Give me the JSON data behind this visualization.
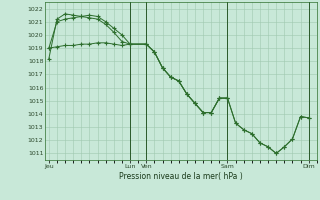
{
  "xlabel": "Pression niveau de la mer( hPa )",
  "background_color": "#c8e8d8",
  "grid_color": "#a0c8b0",
  "line_color": "#2d6e2d",
  "dark_vline_color": "#336633",
  "ylim": [
    1010.5,
    1022.5
  ],
  "yticks": [
    1011,
    1012,
    1013,
    1014,
    1015,
    1016,
    1017,
    1018,
    1019,
    1020,
    1021,
    1022
  ],
  "day_labels": [
    "Jeu",
    "Lun",
    "Ven",
    "Sam",
    "Dim"
  ],
  "day_positions": [
    0,
    10,
    12,
    22,
    32
  ],
  "dark_vline_positions": [
    10,
    12,
    22,
    32
  ],
  "xlim": [
    -0.5,
    33
  ],
  "series1_x": [
    0,
    1,
    2,
    3,
    4,
    5,
    6,
    7,
    8,
    9,
    10,
    12,
    13,
    14,
    15,
    16,
    17,
    18,
    19,
    20,
    21,
    22,
    23,
    24,
    25,
    26,
    27,
    28,
    29,
    30,
    31,
    32
  ],
  "series1_y": [
    1018.2,
    1021.2,
    1021.6,
    1021.5,
    1021.4,
    1021.3,
    1021.2,
    1020.8,
    1020.2,
    1019.5,
    1019.3,
    1019.3,
    1018.7,
    1017.5,
    1016.8,
    1016.5,
    1015.5,
    1014.8,
    1014.1,
    1014.1,
    1015.2,
    1015.2,
    1013.3,
    1012.8,
    1012.5,
    1011.8,
    1011.5,
    1011.0,
    1011.5,
    1012.1,
    1013.8,
    1013.7
  ],
  "series2_x": [
    0,
    1,
    2,
    3,
    4,
    5,
    6,
    7,
    8,
    9,
    10,
    12,
    13,
    14,
    15,
    16,
    17,
    18,
    19,
    20,
    21,
    22,
    23,
    24,
    25,
    26,
    27,
    28,
    29,
    30,
    31,
    32
  ],
  "series2_y": [
    1019.0,
    1019.1,
    1019.2,
    1019.2,
    1019.3,
    1019.3,
    1019.4,
    1019.4,
    1019.3,
    1019.2,
    1019.3,
    1019.3,
    1018.7,
    1017.5,
    1016.8,
    1016.5,
    1015.5,
    1014.8,
    1014.1,
    1014.1,
    1015.2,
    1015.2,
    1013.3,
    1012.8,
    1012.5,
    1011.8,
    1011.5,
    1011.0,
    1011.5,
    1012.1,
    1013.8,
    1013.7
  ],
  "series3_x": [
    0,
    1,
    2,
    3,
    4,
    5,
    6,
    7,
    8,
    9,
    10,
    12,
    13,
    14,
    15,
    16,
    17,
    18,
    19,
    20,
    21,
    22
  ],
  "series3_y": [
    1019.0,
    1021.0,
    1021.2,
    1021.3,
    1021.4,
    1021.5,
    1021.4,
    1021.0,
    1020.5,
    1020.0,
    1019.3,
    1019.3,
    1018.7,
    1017.5,
    1016.8,
    1016.5,
    1015.5,
    1014.8,
    1014.1,
    1014.1,
    1015.2,
    1015.2
  ]
}
